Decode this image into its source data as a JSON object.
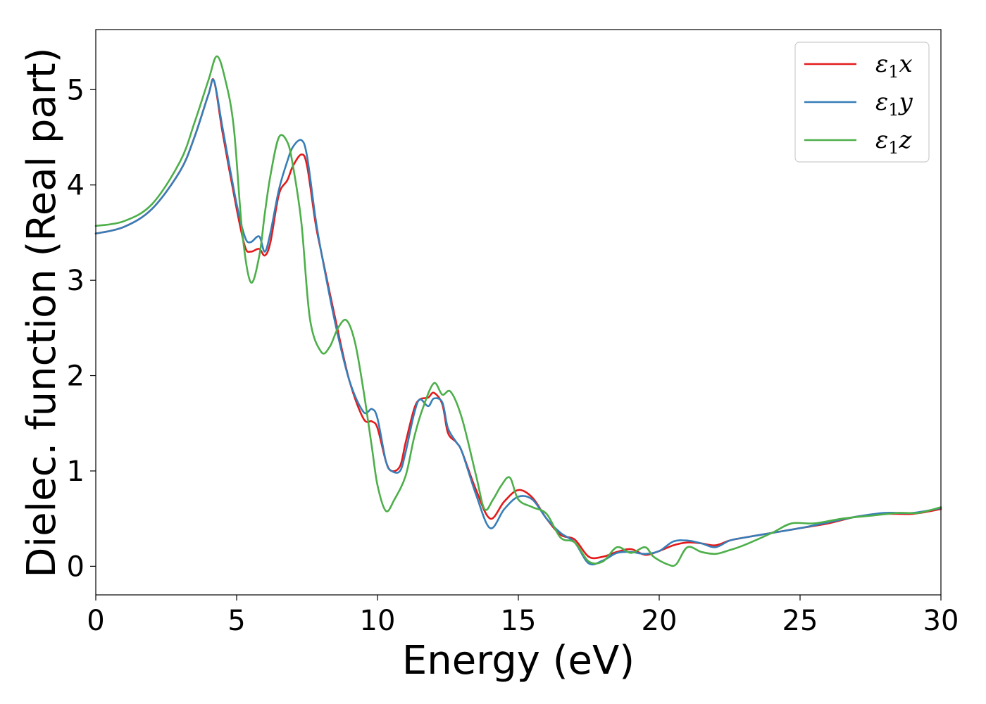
{
  "chart_data": {
    "type": "line",
    "title": "",
    "xlabel": "Energy (eV)",
    "ylabel": "Dielec. function (Real part)",
    "xlim": [
      0,
      30
    ],
    "ylim": [
      -0.3,
      5.63
    ],
    "xticks": [
      0,
      5,
      10,
      15,
      20,
      25,
      30
    ],
    "yticks": [
      0,
      1,
      2,
      3,
      4,
      5
    ],
    "grid": false,
    "legend_position": "top-right",
    "series": [
      {
        "name": "ε₁x",
        "legend_main": "ε",
        "legend_sub": "1",
        "legend_suffix": "x",
        "color": "#e41a1c",
        "x": [
          0,
          1,
          2,
          3,
          3.5,
          4,
          4.2,
          4.5,
          5,
          5.3,
          5.5,
          5.8,
          6.0,
          6.2,
          6.5,
          6.8,
          7.0,
          7.3,
          7.5,
          7.8,
          8.0,
          8.5,
          9.0,
          9.5,
          9.8,
          10.0,
          10.3,
          10.5,
          10.8,
          11.0,
          11.3,
          11.5,
          11.8,
          12.0,
          12.3,
          12.5,
          12.8,
          13.0,
          13.5,
          14.0,
          14.5,
          15.0,
          15.5,
          16.0,
          16.5,
          17.0,
          17.5,
          18.0,
          18.5,
          19.0,
          19.5,
          20.0,
          20.5,
          21.0,
          21.5,
          22.0,
          22.5,
          23.0,
          24.0,
          25.0,
          26.0,
          27.0,
          28.0,
          29.0,
          30.0
        ],
        "values": [
          3.49,
          3.56,
          3.75,
          4.15,
          4.5,
          4.95,
          5.09,
          4.55,
          3.75,
          3.35,
          3.3,
          3.33,
          3.26,
          3.4,
          3.9,
          4.05,
          4.2,
          4.32,
          4.2,
          3.6,
          3.3,
          2.6,
          1.95,
          1.55,
          1.52,
          1.45,
          1.1,
          1.0,
          1.05,
          1.3,
          1.65,
          1.75,
          1.77,
          1.82,
          1.7,
          1.4,
          1.3,
          1.2,
          0.8,
          0.5,
          0.68,
          0.8,
          0.72,
          0.5,
          0.33,
          0.28,
          0.1,
          0.1,
          0.15,
          0.18,
          0.12,
          0.16,
          0.22,
          0.25,
          0.24,
          0.22,
          0.27,
          0.3,
          0.35,
          0.4,
          0.45,
          0.52,
          0.55,
          0.55,
          0.6
        ]
      },
      {
        "name": "ε₁y",
        "legend_main": "ε",
        "legend_sub": "1",
        "legend_suffix": "y",
        "color": "#377eb8",
        "x": [
          0,
          1,
          2,
          3,
          3.5,
          4,
          4.2,
          4.5,
          5,
          5.3,
          5.5,
          5.8,
          6.0,
          6.2,
          6.5,
          6.8,
          7.0,
          7.3,
          7.5,
          7.8,
          8.0,
          8.5,
          9.0,
          9.5,
          9.8,
          10.0,
          10.3,
          10.5,
          10.8,
          11.0,
          11.3,
          11.5,
          11.8,
          12.0,
          12.3,
          12.5,
          12.8,
          13.0,
          13.5,
          14.0,
          14.5,
          15.0,
          15.5,
          16.0,
          16.5,
          17.0,
          17.5,
          18.0,
          18.5,
          19.0,
          19.5,
          20.0,
          20.5,
          21.0,
          21.5,
          22.0,
          22.5,
          23.0,
          24.0,
          25.0,
          26.0,
          27.0,
          28.0,
          29.0,
          30.0
        ],
        "values": [
          3.49,
          3.56,
          3.75,
          4.15,
          4.5,
          4.95,
          5.09,
          4.6,
          3.8,
          3.45,
          3.4,
          3.46,
          3.3,
          3.5,
          3.95,
          4.25,
          4.4,
          4.47,
          4.3,
          3.65,
          3.3,
          2.55,
          1.95,
          1.62,
          1.65,
          1.55,
          1.1,
          1.0,
          1.0,
          1.2,
          1.6,
          1.75,
          1.68,
          1.76,
          1.72,
          1.45,
          1.3,
          1.2,
          0.75,
          0.4,
          0.6,
          0.73,
          0.7,
          0.5,
          0.35,
          0.25,
          0.03,
          0.06,
          0.14,
          0.15,
          0.13,
          0.16,
          0.26,
          0.27,
          0.24,
          0.2,
          0.27,
          0.3,
          0.35,
          0.4,
          0.46,
          0.52,
          0.56,
          0.56,
          0.61
        ]
      },
      {
        "name": "ε₁z",
        "legend_main": "ε",
        "legend_sub": "1",
        "legend_suffix": "z",
        "color": "#4daf4a",
        "x": [
          0,
          1,
          2,
          3,
          3.5,
          4,
          4.3,
          4.6,
          4.9,
          5.2,
          5.5,
          5.8,
          6.0,
          6.2,
          6.5,
          6.8,
          7.0,
          7.3,
          7.6,
          8.0,
          8.3,
          8.6,
          8.9,
          9.2,
          9.5,
          9.8,
          10.0,
          10.3,
          10.6,
          11.0,
          11.3,
          11.6,
          12.0,
          12.3,
          12.6,
          13.0,
          13.5,
          13.8,
          14.1,
          14.4,
          14.7,
          15.0,
          15.5,
          16.0,
          16.5,
          17.0,
          17.5,
          18.0,
          18.5,
          19.0,
          19.5,
          19.8,
          20.3,
          20.6,
          21.0,
          21.5,
          22.0,
          22.5,
          23.0,
          24.0,
          24.7,
          25.5,
          26.5,
          27.5,
          28.5,
          29.2,
          30.0
        ],
        "values": [
          3.57,
          3.62,
          3.8,
          4.25,
          4.65,
          5.1,
          5.35,
          5.1,
          4.6,
          3.5,
          2.98,
          3.25,
          3.7,
          4.1,
          4.5,
          4.45,
          4.2,
          3.6,
          2.6,
          2.25,
          2.3,
          2.5,
          2.58,
          2.35,
          1.85,
          1.25,
          0.85,
          0.58,
          0.7,
          0.95,
          1.35,
          1.65,
          1.92,
          1.8,
          1.83,
          1.55,
          0.95,
          0.6,
          0.7,
          0.85,
          0.93,
          0.7,
          0.62,
          0.55,
          0.3,
          0.25,
          0.05,
          0.05,
          0.2,
          0.14,
          0.2,
          0.1,
          0.02,
          0.02,
          0.2,
          0.15,
          0.13,
          0.17,
          0.22,
          0.35,
          0.45,
          0.45,
          0.5,
          0.53,
          0.56,
          0.56,
          0.62
        ]
      }
    ]
  }
}
